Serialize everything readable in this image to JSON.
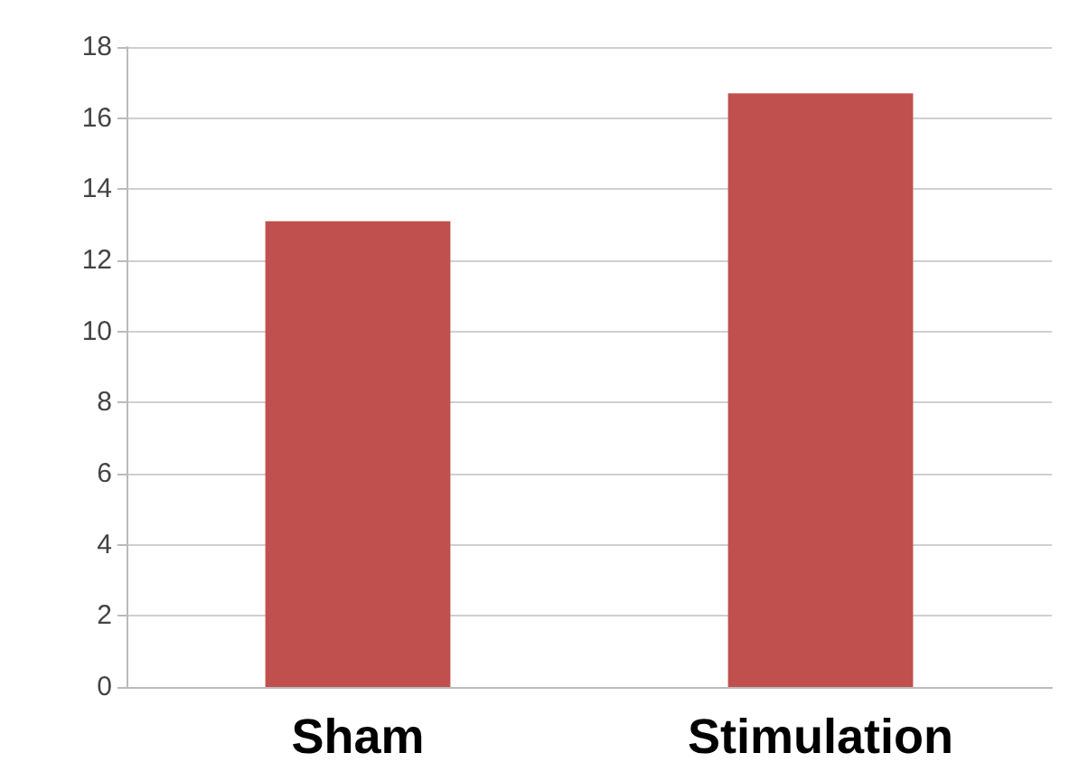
{
  "chart_data": {
    "type": "bar",
    "categories": [
      "Sham",
      "Stimulation"
    ],
    "series": [
      {
        "color": "#c0504d",
        "values": [
          13.1,
          16.7
        ]
      }
    ],
    "ylim": [
      0,
      18
    ],
    "yticks": [
      0,
      2,
      4,
      6,
      8,
      10,
      12,
      14,
      16,
      18
    ],
    "grid": "y"
  }
}
